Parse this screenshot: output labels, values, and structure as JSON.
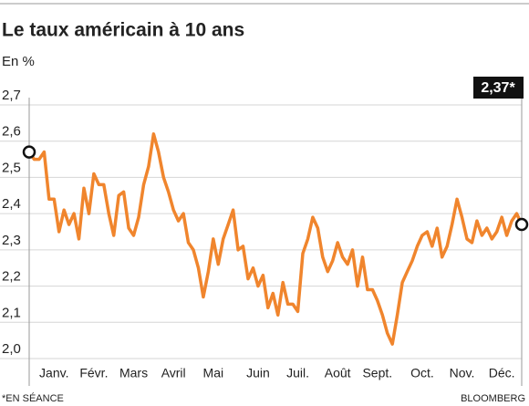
{
  "chart_data": {
    "type": "line",
    "title": "Le taux américain à 10 ans",
    "subtitle": "En %",
    "annotation": "2,37*",
    "footnote": "*EN SÉANCE",
    "source": "BLOOMBERG",
    "color": "#f0852d",
    "ylim": [
      2.0,
      2.7
    ],
    "yticks": [
      {
        "value": 2.0,
        "label": "2,0"
      },
      {
        "value": 2.1,
        "label": "2,1"
      },
      {
        "value": 2.2,
        "label": "2,2"
      },
      {
        "value": 2.3,
        "label": "2,3"
      },
      {
        "value": 2.4,
        "label": "2,4"
      },
      {
        "value": 2.5,
        "label": "2,5"
      },
      {
        "value": 2.6,
        "label": "2,6"
      },
      {
        "value": 2.7,
        "label": "2,7"
      }
    ],
    "grid": true,
    "categories": [
      null,
      null,
      null,
      null,
      null,
      "Janv.",
      null,
      null,
      null,
      null,
      null,
      null,
      null,
      "Févr.",
      null,
      null,
      null,
      null,
      null,
      null,
      null,
      "Mars",
      null,
      null,
      null,
      null,
      null,
      null,
      null,
      "Avril",
      null,
      null,
      null,
      null,
      null,
      null,
      null,
      "Mai",
      null,
      null,
      null,
      null,
      null,
      null,
      null,
      null,
      "Juin",
      null,
      null,
      null,
      null,
      null,
      null,
      null,
      "Juil.",
      null,
      null,
      null,
      null,
      null,
      null,
      null,
      "Août",
      null,
      null,
      null,
      null,
      null,
      null,
      null,
      "Sept.",
      null,
      null,
      null,
      null,
      null,
      null,
      null,
      null,
      "Oct.",
      null,
      null,
      null,
      null,
      null,
      null,
      null,
      "Nov.",
      null,
      null,
      null,
      null,
      null,
      null,
      null,
      "Déc.",
      null,
      null,
      null,
      null
    ],
    "values": [
      2.57,
      2.55,
      2.55,
      2.57,
      2.44,
      2.44,
      2.35,
      2.41,
      2.37,
      2.4,
      2.33,
      2.47,
      2.4,
      2.51,
      2.48,
      2.48,
      2.4,
      2.34,
      2.45,
      2.46,
      2.36,
      2.34,
      2.39,
      2.48,
      2.53,
      2.62,
      2.57,
      2.5,
      2.46,
      2.41,
      2.38,
      2.4,
      2.32,
      2.3,
      2.25,
      2.17,
      2.24,
      2.33,
      2.26,
      2.33,
      2.37,
      2.41,
      2.3,
      2.31,
      2.22,
      2.25,
      2.2,
      2.23,
      2.14,
      2.18,
      2.12,
      2.21,
      2.15,
      2.15,
      2.13,
      2.29,
      2.33,
      2.39,
      2.36,
      2.28,
      2.24,
      2.27,
      2.32,
      2.28,
      2.26,
      2.3,
      2.2,
      2.28,
      2.19,
      2.19,
      2.16,
      2.12,
      2.07,
      2.04,
      2.12,
      2.21,
      2.24,
      2.27,
      2.31,
      2.34,
      2.35,
      2.31,
      2.36,
      2.28,
      2.31,
      2.37,
      2.44,
      2.39,
      2.33,
      2.32,
      2.38,
      2.34,
      2.36,
      2.33,
      2.35,
      2.39,
      2.34,
      2.38,
      2.4,
      2.37
    ]
  }
}
